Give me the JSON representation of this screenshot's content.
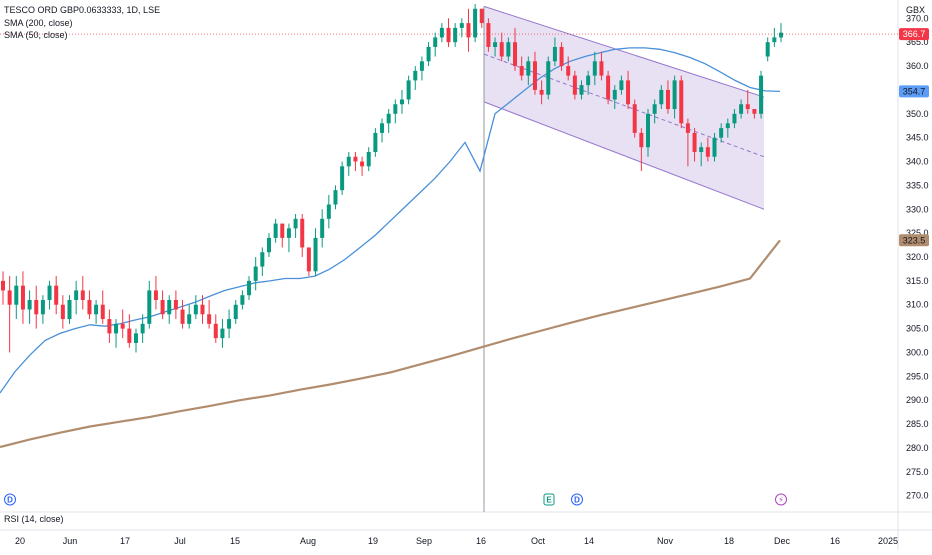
{
  "chart_data": {
    "type": "candlestick",
    "symbol_line": "TESCO ORD GBP0.0633333, 1D, LSE",
    "indicators": [
      "SMA (200, close)",
      "SMA (50, close)"
    ],
    "currency": "GBX",
    "rsi_label": "RSI (14, close)",
    "ylim": [
      267,
      373
    ],
    "y_ticks": [
      "370.0",
      "365.0",
      "360.0",
      "355.0",
      "350.0",
      "345.0",
      "340.0",
      "335.0",
      "330.0",
      "325.0",
      "320.0",
      "315.0",
      "310.0",
      "305.0",
      "300.0",
      "295.0",
      "290.0",
      "285.0",
      "280.0",
      "275.0",
      "270.0"
    ],
    "x_ticks": [
      "20",
      "Jun",
      "17",
      "Jul",
      "15",
      "Aug",
      "19",
      "Sep",
      "16",
      "Oct",
      "14",
      "Nov",
      "18",
      "Dec",
      "16",
      "2025"
    ],
    "price_labels": {
      "last": "366.7",
      "sma50": "354.7",
      "sma200": "323.5"
    },
    "event_markers": [
      "D",
      "E",
      "D",
      "⚡"
    ],
    "candles": [
      [
        315,
        317,
        310,
        313
      ],
      [
        313,
        316,
        300,
        310
      ],
      [
        310,
        316,
        307,
        314
      ],
      [
        314,
        317,
        306,
        309
      ],
      [
        309,
        313,
        306,
        311
      ],
      [
        311,
        314,
        305,
        308
      ],
      [
        308,
        312,
        306,
        311
      ],
      [
        311,
        315,
        309,
        314
      ],
      [
        314,
        316,
        308,
        310
      ],
      [
        310,
        312,
        305,
        307
      ],
      [
        307,
        312,
        306,
        311
      ],
      [
        311,
        315,
        308,
        313
      ],
      [
        313,
        316,
        309,
        311
      ],
      [
        311,
        313,
        307,
        308
      ],
      [
        308,
        311,
        306,
        310
      ],
      [
        310,
        313,
        306,
        307
      ],
      [
        307,
        309,
        302,
        304
      ],
      [
        304,
        307,
        301,
        306
      ],
      [
        306,
        309,
        303,
        305
      ],
      [
        305,
        308,
        301,
        302
      ],
      [
        302,
        305,
        300,
        304
      ],
      [
        304,
        308,
        302,
        306
      ],
      [
        306,
        315,
        305,
        313
      ],
      [
        313,
        316,
        309,
        311
      ],
      [
        311,
        313,
        307,
        308
      ],
      [
        308,
        312,
        306,
        311
      ],
      [
        311,
        313,
        307,
        309
      ],
      [
        309,
        311,
        305,
        306
      ],
      [
        306,
        310,
        305,
        308
      ],
      [
        308,
        312,
        307,
        310
      ],
      [
        310,
        312,
        306,
        308
      ],
      [
        308,
        311,
        305,
        306
      ],
      [
        306,
        308,
        302,
        303
      ],
      [
        303,
        307,
        301,
        305
      ],
      [
        305,
        309,
        303,
        307
      ],
      [
        307,
        311,
        306,
        310
      ],
      [
        310,
        313,
        309,
        312
      ],
      [
        312,
        316,
        311,
        315
      ],
      [
        315,
        320,
        313,
        318
      ],
      [
        318,
        322,
        316,
        321
      ],
      [
        321,
        325,
        320,
        324
      ],
      [
        324,
        328,
        323,
        327
      ],
      [
        327,
        327,
        322,
        324
      ],
      [
        324,
        327,
        321,
        326
      ],
      [
        326,
        329,
        324,
        328
      ],
      [
        328,
        329,
        320,
        322
      ],
      [
        322,
        322,
        316,
        317
      ],
      [
        317,
        326,
        316,
        324
      ],
      [
        324,
        330,
        322,
        328
      ],
      [
        328,
        333,
        326,
        331
      ],
      [
        331,
        335,
        330,
        334
      ],
      [
        334,
        340,
        333,
        339
      ],
      [
        339,
        342,
        337,
        341
      ],
      [
        341,
        342,
        338,
        340
      ],
      [
        340,
        341,
        337,
        339
      ],
      [
        339,
        343,
        338,
        342
      ],
      [
        342,
        347,
        341,
        346
      ],
      [
        346,
        349,
        344,
        348
      ],
      [
        348,
        351,
        346,
        350
      ],
      [
        350,
        353,
        348,
        352
      ],
      [
        352,
        355,
        350,
        353
      ],
      [
        353,
        358,
        352,
        357
      ],
      [
        357,
        360,
        355,
        359
      ],
      [
        359,
        362,
        357,
        361
      ],
      [
        361,
        365,
        360,
        364
      ],
      [
        364,
        367,
        362,
        366
      ],
      [
        366,
        369,
        365,
        368
      ],
      [
        368,
        370,
        364,
        365
      ],
      [
        365,
        369,
        364,
        368
      ],
      [
        368,
        370,
        366,
        369
      ],
      [
        369,
        372,
        363,
        366
      ],
      [
        366,
        373,
        365,
        372
      ],
      [
        372,
        372,
        368,
        369
      ],
      [
        369,
        370,
        363,
        364
      ],
      [
        364,
        366,
        362,
        365
      ],
      [
        365,
        367,
        361,
        362
      ],
      [
        362,
        366,
        361,
        365
      ],
      [
        365,
        368,
        359,
        360
      ],
      [
        360,
        362,
        357,
        358
      ],
      [
        358,
        362,
        356,
        361
      ],
      [
        361,
        363,
        354,
        355
      ],
      [
        355,
        357,
        352,
        354
      ],
      [
        354,
        362,
        353,
        361
      ],
      [
        361,
        366,
        360,
        364
      ],
      [
        364,
        365,
        359,
        360
      ],
      [
        360,
        362,
        357,
        358
      ],
      [
        358,
        359,
        353,
        354
      ],
      [
        354,
        357,
        353,
        356
      ],
      [
        356,
        359,
        354,
        358
      ],
      [
        358,
        363,
        356,
        361
      ],
      [
        361,
        363,
        357,
        358
      ],
      [
        358,
        359,
        352,
        353
      ],
      [
        353,
        356,
        351,
        355
      ],
      [
        355,
        358,
        354,
        357
      ],
      [
        357,
        359,
        351,
        352
      ],
      [
        352,
        353,
        345,
        346
      ],
      [
        346,
        347,
        338,
        343
      ],
      [
        343,
        351,
        341,
        350
      ],
      [
        350,
        353,
        348,
        352
      ],
      [
        352,
        356,
        351,
        355
      ],
      [
        355,
        357,
        350,
        351
      ],
      [
        351,
        358,
        349,
        357
      ],
      [
        357,
        358,
        347,
        348
      ],
      [
        348,
        349,
        339,
        346
      ],
      [
        346,
        347,
        340,
        342
      ],
      [
        342,
        344,
        339,
        343
      ],
      [
        343,
        345,
        340,
        341
      ],
      [
        341,
        346,
        340,
        345
      ],
      [
        345,
        348,
        344,
        347
      ],
      [
        347,
        349,
        345,
        348
      ],
      [
        348,
        351,
        347,
        350
      ],
      [
        350,
        353,
        349,
        352
      ],
      [
        352,
        355,
        350,
        351
      ],
      [
        351,
        351,
        349,
        350
      ],
      [
        350,
        359,
        349,
        358
      ],
      [
        362,
        366,
        361,
        365
      ],
      [
        365,
        368,
        364,
        366
      ],
      [
        366,
        369,
        365,
        367
      ]
    ],
    "sma50": [
      [
        0,
        291.5
      ],
      [
        15,
        296
      ],
      [
        30,
        299.5
      ],
      [
        45,
        302.5
      ],
      [
        60,
        304
      ],
      [
        75,
        305
      ],
      [
        90,
        305.8
      ],
      [
        105,
        305.5
      ],
      [
        120,
        306
      ],
      [
        135,
        306.8
      ],
      [
        150,
        307.5
      ],
      [
        165,
        308.5
      ],
      [
        180,
        309.5
      ],
      [
        195,
        310.5
      ],
      [
        210,
        311.8
      ],
      [
        225,
        313
      ],
      [
        240,
        313.8
      ],
      [
        255,
        314.6
      ],
      [
        270,
        315
      ],
      [
        285,
        315.5
      ],
      [
        300,
        315.5
      ],
      [
        315,
        316
      ],
      [
        330,
        317.5
      ],
      [
        345,
        319.5
      ],
      [
        360,
        322
      ],
      [
        375,
        324.5
      ],
      [
        390,
        327.5
      ],
      [
        405,
        330.5
      ],
      [
        420,
        333.5
      ],
      [
        435,
        336.5
      ],
      [
        450,
        340
      ],
      [
        465,
        344
      ],
      [
        480,
        338
      ],
      [
        495,
        350
      ],
      [
        510,
        352.5
      ],
      [
        525,
        355
      ],
      [
        540,
        357.5
      ],
      [
        555,
        359.5
      ],
      [
        570,
        361
      ],
      [
        585,
        362
      ],
      [
        600,
        362.8
      ],
      [
        615,
        363.5
      ],
      [
        630,
        363.8
      ],
      [
        645,
        363.8
      ],
      [
        660,
        363.5
      ],
      [
        675,
        362.8
      ],
      [
        690,
        361.8
      ],
      [
        705,
        360.5
      ],
      [
        720,
        358.8
      ],
      [
        735,
        357
      ],
      [
        750,
        355.5
      ],
      [
        765,
        354.8
      ],
      [
        780,
        354.7
      ]
    ],
    "sma200": [
      [
        0,
        280.2
      ],
      [
        30,
        281.8
      ],
      [
        60,
        283.2
      ],
      [
        90,
        284.5
      ],
      [
        120,
        285.5
      ],
      [
        150,
        286.5
      ],
      [
        180,
        287.7
      ],
      [
        210,
        288.8
      ],
      [
        240,
        290
      ],
      [
        270,
        291
      ],
      [
        300,
        292.2
      ],
      [
        330,
        293.3
      ],
      [
        360,
        294.5
      ],
      [
        390,
        295.8
      ],
      [
        420,
        297.5
      ],
      [
        450,
        299.2
      ],
      [
        480,
        301
      ],
      [
        510,
        302.8
      ],
      [
        540,
        304.5
      ],
      [
        570,
        306.2
      ],
      [
        600,
        307.8
      ],
      [
        630,
        309.3
      ],
      [
        660,
        310.8
      ],
      [
        690,
        312.3
      ],
      [
        720,
        313.8
      ],
      [
        750,
        315.5
      ],
      [
        780,
        323.5
      ]
    ],
    "channel": {
      "start_x_label": "16",
      "upper": [
        [
          372.5
        ],
        [
          353.5
        ]
      ],
      "lower": [
        [
          352.5
        ],
        [
          330
        ]
      ],
      "mid": [
        [
          362.5
        ],
        [
          341
        ]
      ]
    }
  }
}
